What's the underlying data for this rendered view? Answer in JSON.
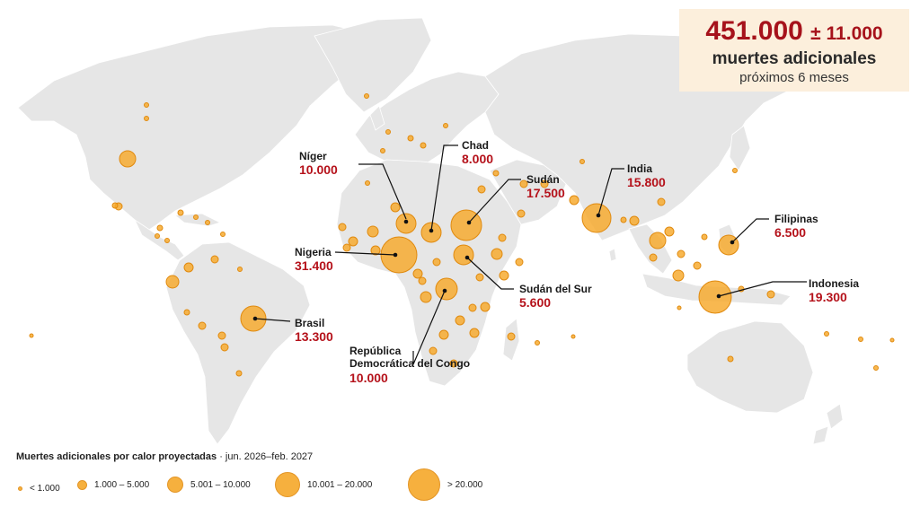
{
  "headline": {
    "total": "451.000",
    "margin": "± 11.000",
    "line1": "muertes adicionales",
    "line2": "próximos 6 meses"
  },
  "colors": {
    "bubble": "#f6a82a",
    "value_text": "#b5121b",
    "land": "#e6e6e6",
    "headline_bg": "#fcefdc"
  },
  "labels": [
    {
      "id": "niger",
      "name": "Níger",
      "value": "10.000"
    },
    {
      "id": "chad",
      "name": "Chad",
      "value": "8.000"
    },
    {
      "id": "sudan",
      "name": "Sudán",
      "value": "17.500"
    },
    {
      "id": "india",
      "name": "India",
      "value": "15.800"
    },
    {
      "id": "filipinas",
      "name": "Filipinas",
      "value": "6.500"
    },
    {
      "id": "nigeria",
      "name": "Nigeria",
      "value": "31.400"
    },
    {
      "id": "sudan-sur",
      "name": "Sudán del Sur",
      "value": "5.600"
    },
    {
      "id": "indonesia",
      "name": "Indonesia",
      "value": "19.300"
    },
    {
      "id": "brasil",
      "name": "Brasil",
      "value": "13.300"
    },
    {
      "id": "rdc",
      "name_lines": [
        "República",
        "Democrática del Congo"
      ],
      "value": "10.000"
    }
  ],
  "legend": {
    "title_bold": "Muertes adicionales por calor proyectadas",
    "title_rest": " · jun. 2026–feb. 2027",
    "items": [
      {
        "label": "< 1.000"
      },
      {
        "label": "1.000 – 5.000"
      },
      {
        "label": "5.001 – 10.000"
      },
      {
        "label": "10.001 – 20.000"
      },
      {
        "label": "> 20.000"
      }
    ]
  }
}
